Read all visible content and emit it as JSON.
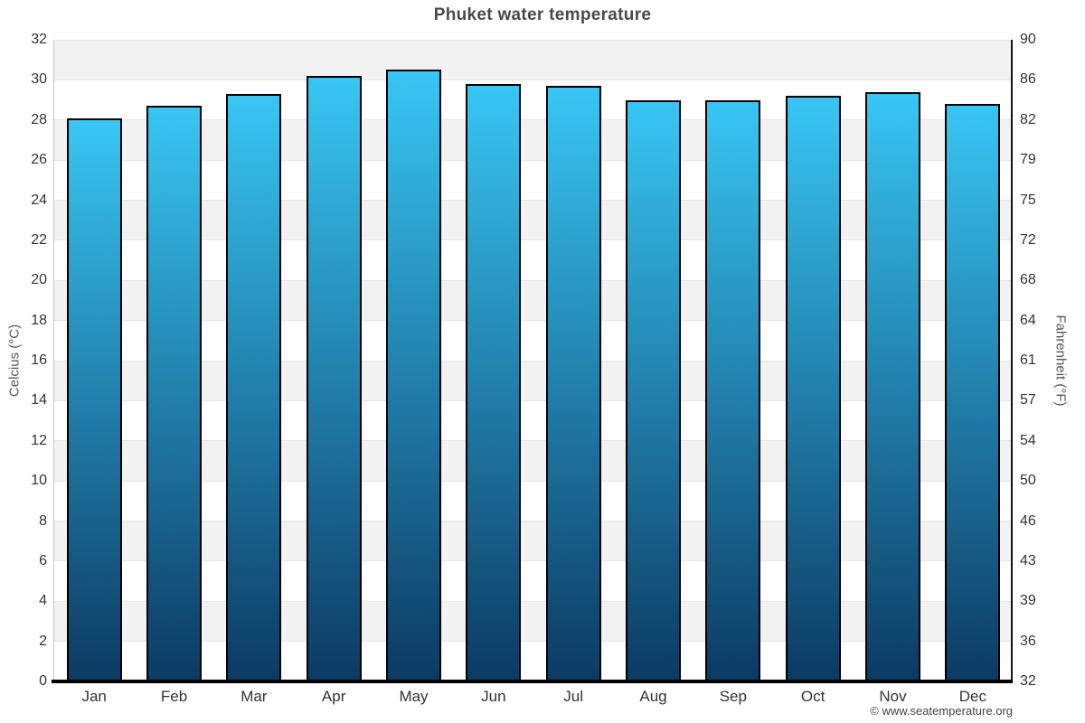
{
  "title": "Phuket water temperature",
  "chart_data": {
    "type": "bar",
    "title": "Phuket water temperature",
    "categories": [
      "Jan",
      "Feb",
      "Mar",
      "Apr",
      "May",
      "Jun",
      "Jul",
      "Aug",
      "Sep",
      "Oct",
      "Nov",
      "Dec"
    ],
    "values": [
      28.1,
      28.7,
      29.3,
      30.2,
      30.5,
      29.8,
      29.7,
      29.0,
      29.0,
      29.2,
      29.4,
      28.8
    ],
    "value_unit": "°C",
    "ylabel_left": "Celcius (°C)",
    "ylabel_right": "Fahrenheit (°F)",
    "ylim": [
      0,
      32
    ],
    "ytick_step": 2,
    "yticks_celsius": [
      0,
      2,
      4,
      6,
      8,
      10,
      12,
      14,
      16,
      18,
      20,
      22,
      24,
      26,
      28,
      30,
      32
    ],
    "yticks_fahrenheit": [
      32,
      36,
      39,
      43,
      46,
      50,
      54,
      57,
      61,
      64,
      68,
      72,
      75,
      79,
      82,
      86,
      90
    ],
    "grid": true,
    "legend_position": "none",
    "plot_band_color": "#f2f2f2",
    "gridline_color": "#e6e6e6",
    "bar_gradient_top": "#38c6f4",
    "bar_gradient_bottom": "#0b3a63",
    "bar_border_color": "#000000"
  },
  "footer": {
    "copyright": "© www.seatemperature.org"
  }
}
